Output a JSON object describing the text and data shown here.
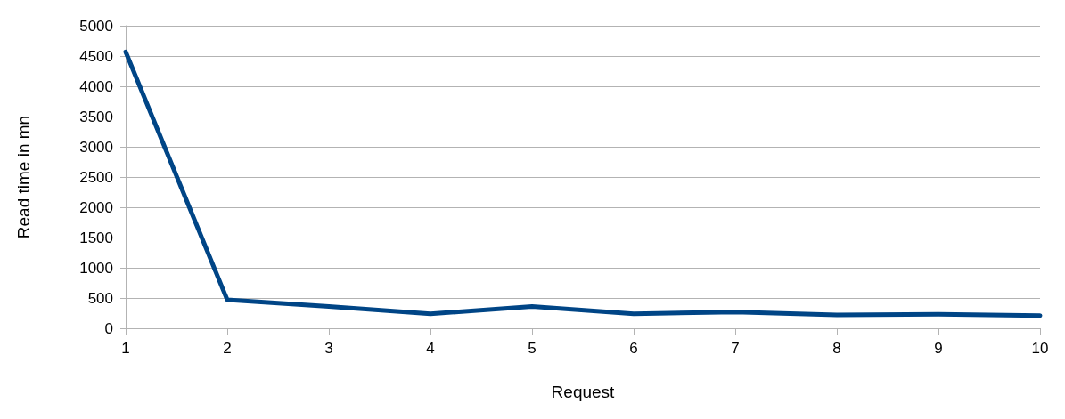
{
  "chart_data": {
    "type": "line",
    "xlabel": "Request",
    "ylabel": "Read time in mn",
    "categories": [
      "1",
      "2",
      "3",
      "4",
      "5",
      "6",
      "7",
      "8",
      "9",
      "10"
    ],
    "series": [
      {
        "color": "#004586",
        "values": [
          4570,
          470,
          360,
          240,
          360,
          240,
          270,
          220,
          230,
          210
        ]
      }
    ],
    "ylim": [
      0,
      5000
    ],
    "yticks": [
      0,
      500,
      1000,
      1500,
      2000,
      2500,
      3000,
      3500,
      4000,
      4500,
      5000
    ],
    "grid": "y",
    "marker": "none",
    "line_style": "solid"
  }
}
